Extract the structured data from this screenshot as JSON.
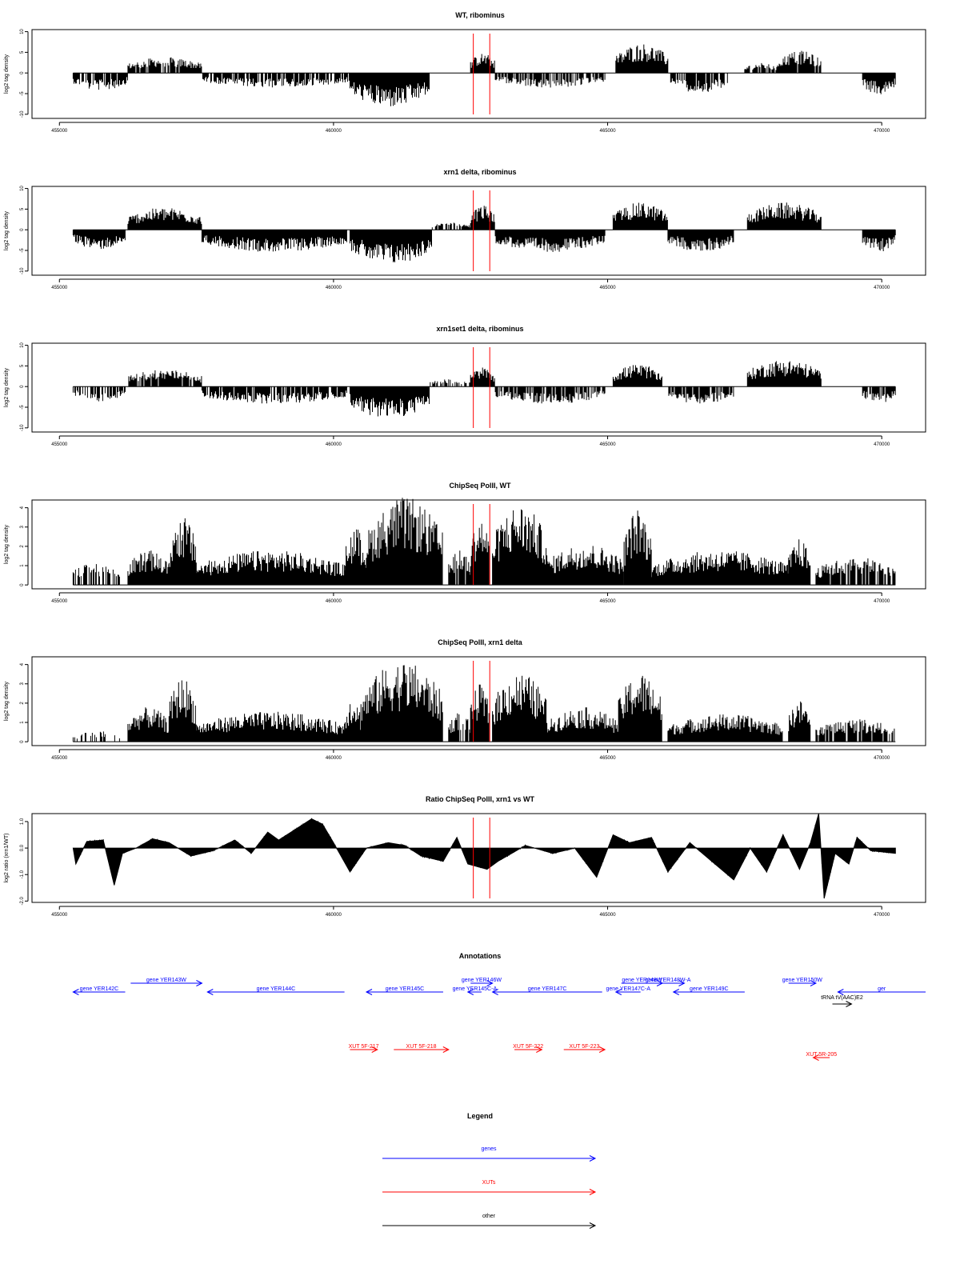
{
  "chart_data": [
    {
      "type": "bar",
      "title": "WT, ribominus",
      "ylabel": "log2 tag density",
      "xlim": [
        454500,
        470800
      ],
      "ylim": [
        -11,
        10.5
      ],
      "yticks": [
        10,
        5,
        0,
        -5,
        -10
      ],
      "yticklabels": [
        "10",
        "5",
        "0",
        "-5",
        "-10"
      ],
      "xticks": [
        455000,
        460000,
        465000,
        470000
      ],
      "xticklabels": [
        "455000",
        "460000",
        "465000",
        "470000"
      ],
      "red_lines": [
        462550,
        462850
      ],
      "segments": [
        {
          "x": [
            455250,
            456250
          ],
          "level": -3.5,
          "sparse": 0.8
        },
        {
          "x": [
            456250,
            457600
          ],
          "level": 3.2,
          "sparse": 0.85
        },
        {
          "x": [
            457600,
            460300
          ],
          "level": -3.0,
          "sparse": 0.8
        },
        {
          "x": [
            460300,
            461750
          ],
          "level": -7.0,
          "sparse": 1.0
        },
        {
          "x": [
            461750,
            462500
          ],
          "level": 0,
          "sparse": 0.1
        },
        {
          "x": [
            462500,
            462950
          ],
          "level": 4.0,
          "sparse": 1.0
        },
        {
          "x": [
            462950,
            464950
          ],
          "level": -3.0,
          "sparse": 0.7
        },
        {
          "x": [
            465150,
            466100
          ],
          "level": 6.0,
          "sparse": 1.0
        },
        {
          "x": [
            466150,
            467200
          ],
          "level": -4.0,
          "sparse": 0.8
        },
        {
          "x": [
            467500,
            468100
          ],
          "level": 2.0,
          "sparse": 0.7
        },
        {
          "x": [
            468100,
            468900
          ],
          "level": 4.5,
          "sparse": 0.9
        },
        {
          "x": [
            469650,
            470250
          ],
          "level": -4.5,
          "sparse": 1.0
        }
      ]
    },
    {
      "type": "bar",
      "title": "xrn1 delta, ribominus",
      "ylabel": "log2 tag density",
      "xlim": [
        454500,
        470800
      ],
      "ylim": [
        -11,
        10.5
      ],
      "yticks": [
        10,
        5,
        0,
        -5,
        -10
      ],
      "yticklabels": [
        "10",
        "5",
        "0",
        "-5",
        "-10"
      ],
      "xticks": [
        455000,
        460000,
        465000,
        470000
      ],
      "xticklabels": [
        "455000",
        "460000",
        "465000",
        "470000"
      ],
      "red_lines": [
        462550,
        462850
      ],
      "segments": [
        {
          "x": [
            455250,
            456200
          ],
          "level": -4.0,
          "sparse": 1.0
        },
        {
          "x": [
            456250,
            457600
          ],
          "level": 4.5,
          "sparse": 1.0
        },
        {
          "x": [
            457600,
            460250
          ],
          "level": -4.5,
          "sparse": 1.0
        },
        {
          "x": [
            460300,
            461800
          ],
          "level": -7.0,
          "sparse": 1.0
        },
        {
          "x": [
            461800,
            462500
          ],
          "level": 1.5,
          "sparse": 0.6
        },
        {
          "x": [
            462500,
            462950
          ],
          "level": 5.0,
          "sparse": 1.0
        },
        {
          "x": [
            462950,
            464950
          ],
          "level": -4.5,
          "sparse": 1.0
        },
        {
          "x": [
            465100,
            466100
          ],
          "level": 5.5,
          "sparse": 1.0
        },
        {
          "x": [
            466100,
            467300
          ],
          "level": -4.5,
          "sparse": 1.0
        },
        {
          "x": [
            467550,
            468900
          ],
          "level": 5.5,
          "sparse": 1.0
        },
        {
          "x": [
            469650,
            470250
          ],
          "level": -4.5,
          "sparse": 1.0
        }
      ]
    },
    {
      "type": "bar",
      "title": "xrn1set1 delta, ribominus",
      "ylabel": "log2 tag density",
      "xlim": [
        454500,
        470800
      ],
      "ylim": [
        -11,
        10.5
      ],
      "yticks": [
        10,
        5,
        0,
        -5,
        -10
      ],
      "yticklabels": [
        "10",
        "5",
        "0",
        "-5",
        "-10"
      ],
      "xticks": [
        455000,
        460000,
        465000,
        470000
      ],
      "xticklabels": [
        "455000",
        "460000",
        "465000",
        "470000"
      ],
      "red_lines": [
        462550,
        462850
      ],
      "segments": [
        {
          "x": [
            455250,
            456200
          ],
          "level": -3.0,
          "sparse": 0.6
        },
        {
          "x": [
            456250,
            457600
          ],
          "level": 3.5,
          "sparse": 0.85
        },
        {
          "x": [
            457600,
            460250
          ],
          "level": -3.5,
          "sparse": 0.85
        },
        {
          "x": [
            460300,
            461750
          ],
          "level": -6.5,
          "sparse": 1.0
        },
        {
          "x": [
            461750,
            462500
          ],
          "level": 1.5,
          "sparse": 0.5
        },
        {
          "x": [
            462500,
            462950
          ],
          "level": 4.0,
          "sparse": 1.0
        },
        {
          "x": [
            462950,
            464950
          ],
          "level": -3.5,
          "sparse": 0.8
        },
        {
          "x": [
            465100,
            466000
          ],
          "level": 4.5,
          "sparse": 1.0
        },
        {
          "x": [
            466100,
            467300
          ],
          "level": -3.5,
          "sparse": 0.8
        },
        {
          "x": [
            467550,
            468900
          ],
          "level": 5.5,
          "sparse": 1.0
        },
        {
          "x": [
            469650,
            470250
          ],
          "level": -3.5,
          "sparse": 0.9
        }
      ]
    },
    {
      "type": "bar",
      "title": "ChipSeq PolII, WT",
      "ylabel": "log2 tag density",
      "xlim": [
        454500,
        470800
      ],
      "ylim": [
        -0.2,
        4.4
      ],
      "yticks": [
        0,
        1,
        2,
        3,
        4
      ],
      "yticklabels": [
        "0",
        "1",
        "2",
        "3",
        "4"
      ],
      "xticks": [
        455000,
        460000,
        465000,
        470000
      ],
      "xticklabels": [
        "455000",
        "460000",
        "465000",
        "470000"
      ],
      "red_lines": [
        462550,
        462850
      ],
      "segments": [
        {
          "x": [
            455250,
            456100
          ],
          "level": 1.0,
          "sparse": 0.6
        },
        {
          "x": [
            456250,
            457000
          ],
          "level": 1.5,
          "sparse": 1.0
        },
        {
          "x": [
            457000,
            457500
          ],
          "level": 3.0,
          "sparse": 1.0
        },
        {
          "x": [
            457500,
            460200
          ],
          "level": 1.5,
          "sparse": 1.0
        },
        {
          "x": [
            460200,
            460600
          ],
          "level": 2.5,
          "sparse": 1.0
        },
        {
          "x": [
            460600,
            462000
          ],
          "level": 3.8,
          "sparse": 1.0
        },
        {
          "x": [
            462100,
            462500
          ],
          "level": 1.5,
          "sparse": 0.8
        },
        {
          "x": [
            462500,
            462850
          ],
          "level": 3.0,
          "sparse": 1.0
        },
        {
          "x": [
            462900,
            463900
          ],
          "level": 3.5,
          "sparse": 1.0
        },
        {
          "x": [
            463900,
            465300
          ],
          "level": 1.8,
          "sparse": 1.0
        },
        {
          "x": [
            465300,
            465800
          ],
          "level": 3.3,
          "sparse": 1.0
        },
        {
          "x": [
            465800,
            468300
          ],
          "level": 1.5,
          "sparse": 1.0
        },
        {
          "x": [
            468300,
            468700
          ],
          "level": 2.0,
          "sparse": 1.0
        },
        {
          "x": [
            468800,
            470250
          ],
          "level": 1.2,
          "sparse": 0.8
        }
      ]
    },
    {
      "type": "bar",
      "title": "ChipSeq PolII, xrn1 delta",
      "ylabel": "log2 tag density",
      "xlim": [
        454500,
        470800
      ],
      "ylim": [
        -0.2,
        4.4
      ],
      "yticks": [
        0,
        1,
        2,
        3,
        4
      ],
      "yticklabels": [
        "0",
        "1",
        "2",
        "3",
        "4"
      ],
      "xticks": [
        455000,
        460000,
        465000,
        470000
      ],
      "xticklabels": [
        "455000",
        "460000",
        "465000",
        "470000"
      ],
      "red_lines": [
        462550,
        462850
      ],
      "segments": [
        {
          "x": [
            455250,
            456100
          ],
          "level": 0.5,
          "sparse": 0.4
        },
        {
          "x": [
            456250,
            457000
          ],
          "level": 1.5,
          "sparse": 1.0
        },
        {
          "x": [
            457000,
            457500
          ],
          "level": 2.8,
          "sparse": 1.0
        },
        {
          "x": [
            457500,
            460200
          ],
          "level": 1.3,
          "sparse": 1.0
        },
        {
          "x": [
            460200,
            460500
          ],
          "level": 2.0,
          "sparse": 1.0
        },
        {
          "x": [
            460500,
            462000
          ],
          "level": 3.5,
          "sparse": 1.0
        },
        {
          "x": [
            462100,
            462500
          ],
          "level": 1.3,
          "sparse": 0.8
        },
        {
          "x": [
            462500,
            462850
          ],
          "level": 2.5,
          "sparse": 1.0
        },
        {
          "x": [
            462900,
            463900
          ],
          "level": 3.0,
          "sparse": 1.0
        },
        {
          "x": [
            463900,
            465200
          ],
          "level": 1.5,
          "sparse": 1.0
        },
        {
          "x": [
            465200,
            466000
          ],
          "level": 3.0,
          "sparse": 1.0
        },
        {
          "x": [
            466100,
            468200
          ],
          "level": 1.2,
          "sparse": 1.0
        },
        {
          "x": [
            468300,
            468700
          ],
          "level": 1.8,
          "sparse": 1.0
        },
        {
          "x": [
            468800,
            470250
          ],
          "level": 1.0,
          "sparse": 0.8
        }
      ]
    },
    {
      "type": "area",
      "title": "Ratio ChipSeq PolII, xrn1 vs WT",
      "ylabel": "log2 ratio (xrn1/WT)",
      "xlim": [
        454500,
        470800
      ],
      "ylim": [
        -2.05,
        1.3
      ],
      "yticks": [
        1.0,
        0.0,
        -1.0,
        -2.0
      ],
      "yticklabels": [
        "1.0",
        "0.0",
        "-1.0",
        "-2.0"
      ],
      "xticks": [
        455000,
        460000,
        465000,
        470000
      ],
      "xticklabels": [
        "455000",
        "460000",
        "465000",
        "470000"
      ],
      "red_lines": [
        462550,
        462850
      ],
      "profile": [
        [
          455250,
          0.0
        ],
        [
          455300,
          -0.6
        ],
        [
          455500,
          0.25
        ],
        [
          455800,
          0.3
        ],
        [
          456000,
          -1.4
        ],
        [
          456150,
          -0.2
        ],
        [
          456400,
          0.0
        ],
        [
          456700,
          0.35
        ],
        [
          457000,
          0.2
        ],
        [
          457400,
          -0.3
        ],
        [
          457800,
          -0.1
        ],
        [
          458200,
          0.3
        ],
        [
          458500,
          -0.2
        ],
        [
          458800,
          0.6
        ],
        [
          459000,
          0.3
        ],
        [
          459300,
          0.7
        ],
        [
          459600,
          1.1
        ],
        [
          459800,
          0.9
        ],
        [
          460000,
          0.2
        ],
        [
          460300,
          -0.9
        ],
        [
          460600,
          0.0
        ],
        [
          461000,
          0.2
        ],
        [
          461300,
          0.1
        ],
        [
          461600,
          -0.3
        ],
        [
          462000,
          -0.5
        ],
        [
          462250,
          0.4
        ],
        [
          462450,
          -0.6
        ],
        [
          462800,
          -0.8
        ],
        [
          463000,
          -0.5
        ],
        [
          463500,
          0.1
        ],
        [
          464000,
          -0.2
        ],
        [
          464400,
          0.0
        ],
        [
          464800,
          -1.1
        ],
        [
          465100,
          0.5
        ],
        [
          465400,
          0.2
        ],
        [
          465800,
          0.4
        ],
        [
          466100,
          -0.9
        ],
        [
          466500,
          0.2
        ],
        [
          466900,
          -0.5
        ],
        [
          467300,
          -1.2
        ],
        [
          467600,
          0.0
        ],
        [
          467900,
          -0.9
        ],
        [
          468200,
          0.5
        ],
        [
          468500,
          -0.8
        ],
        [
          468700,
          0.2
        ],
        [
          468850,
          1.3
        ],
        [
          468950,
          -1.9
        ],
        [
          469150,
          -0.2
        ],
        [
          469400,
          -0.6
        ],
        [
          469550,
          0.4
        ],
        [
          469800,
          -0.1
        ],
        [
          470250,
          -0.2
        ]
      ]
    }
  ],
  "annotations": {
    "title": "Annotations",
    "genes": [
      {
        "label": "gene YER142C",
        "x": [
          455250,
          456200
        ],
        "dir": "rev",
        "row": 1
      },
      {
        "label": "gene YER143W",
        "x": [
          456300,
          457600
        ],
        "dir": "fwd",
        "row": 0
      },
      {
        "label": "gene YER144C",
        "x": [
          457700,
          460200
        ],
        "dir": "rev",
        "row": 1
      },
      {
        "label": "gene YER145C",
        "x": [
          460600,
          462000
        ],
        "dir": "rev",
        "row": 1
      },
      {
        "label": "gene YER146W",
        "x": [
          462500,
          462900
        ],
        "dir": "fwd",
        "row": 0
      },
      {
        "label": "gene YER145C-A",
        "x": [
          462450,
          462700
        ],
        "dir": "rev",
        "row": 1
      },
      {
        "label": "gene YER147C",
        "x": [
          462900,
          464900
        ],
        "dir": "rev",
        "row": 1
      },
      {
        "label": "gene YER148W",
        "x": [
          465250,
          466000
        ],
        "dir": "fwd",
        "row": 0
      },
      {
        "label": "gene YER148W-A",
        "x": [
          465800,
          466400
        ],
        "dir": "fwd",
        "row": 0
      },
      {
        "label": "gene YER147C-A",
        "x": [
          465150,
          465600
        ],
        "dir": "rev",
        "row": 1
      },
      {
        "label": "gene YER149C",
        "x": [
          466200,
          467500
        ],
        "dir": "rev",
        "row": 1
      },
      {
        "label": "gene YER150W",
        "x": [
          468300,
          468800
        ],
        "dir": "fwd",
        "row": 0
      },
      {
        "label": "ger",
        "x": [
          469200,
          470800
        ],
        "dir": "rev",
        "row": 1
      }
    ],
    "xuts": [
      {
        "label": "XUT 5F-217",
        "x": [
          460300,
          460800
        ],
        "dir": "fwd",
        "row": 0
      },
      {
        "label": "XUT 5F-218",
        "x": [
          461100,
          462100
        ],
        "dir": "fwd",
        "row": 0
      },
      {
        "label": "XUT 5F-222",
        "x": [
          463300,
          463800
        ],
        "dir": "fwd",
        "row": 0
      },
      {
        "label": "XUT 5F-223",
        "x": [
          464200,
          464950
        ],
        "dir": "fwd",
        "row": 0
      },
      {
        "label": "XUT 5R-205",
        "x": [
          468750,
          469050
        ],
        "dir": "rev",
        "row": 1
      }
    ],
    "other": [
      {
        "label": "tRNA tV(AAC)E2",
        "x": [
          469100,
          469450
        ],
        "dir": "fwd"
      }
    ]
  },
  "legend": {
    "title": "Legend",
    "items": [
      {
        "label": "genes",
        "color": "#0000ff"
      },
      {
        "label": "XUTs",
        "color": "#ff0000"
      },
      {
        "label": "other",
        "color": "#000000"
      }
    ]
  },
  "colors": {
    "gene": "#0000ff",
    "xut": "#ff0000",
    "other": "#000000",
    "marker": "#ff0000",
    "bar": "#000000"
  }
}
